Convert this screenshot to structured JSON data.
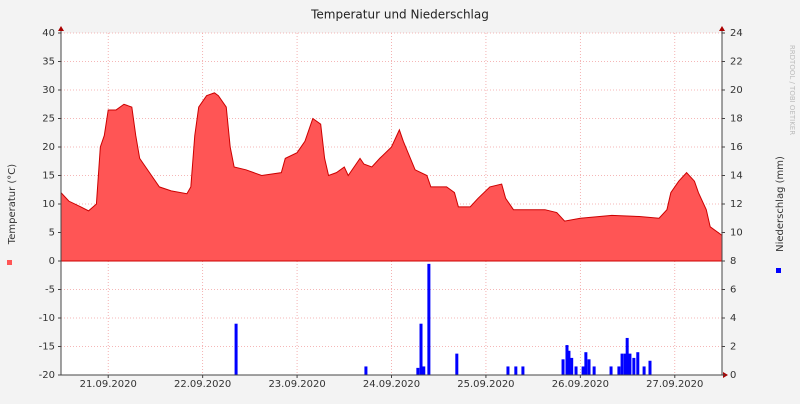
{
  "chart_data": {
    "type": "area",
    "title": "Temperatur und Niederschlag",
    "watermark": "RRDTOOL / TOBI OETIKER",
    "xlim": [
      0,
      168
    ],
    "xticks": [
      {
        "value": 12,
        "label": "21.09.2020"
      },
      {
        "value": 36,
        "label": "22.09.2020"
      },
      {
        "value": 60,
        "label": "23.09.2020"
      },
      {
        "value": 84,
        "label": "24.09.2020"
      },
      {
        "value": 108,
        "label": "25.09.2020"
      },
      {
        "value": 132,
        "label": "26.09.2020"
      },
      {
        "value": 156,
        "label": "27.09.2020"
      }
    ],
    "ylim": [
      -20,
      40
    ],
    "yticks": [
      -20,
      -15,
      -10,
      -5,
      0,
      5,
      10,
      15,
      20,
      25,
      30,
      35,
      40
    ],
    "y2lim": [
      0,
      24
    ],
    "y2ticks": [
      0,
      2,
      4,
      6,
      8,
      10,
      12,
      14,
      16,
      18,
      20,
      22,
      24
    ],
    "grid": true,
    "series": [
      {
        "name": "Temperatur (°C)",
        "type": "area",
        "color": "#ff5555",
        "line_color": "#cc0000",
        "x": [
          0,
          2,
          5,
          7,
          9,
          10,
          11,
          12,
          14,
          16,
          18,
          19,
          20,
          21,
          23,
          25,
          28,
          32,
          33,
          34,
          35,
          37,
          39,
          40,
          42,
          43,
          44,
          47,
          51,
          56,
          57,
          60,
          62,
          64,
          66,
          67,
          68,
          70,
          72,
          73,
          76,
          77,
          79,
          81,
          84,
          86,
          87,
          90,
          93,
          94,
          98,
          100,
          101,
          104,
          106,
          109,
          112,
          113,
          115,
          123,
          126,
          128,
          132,
          140,
          147,
          152,
          154,
          155,
          157,
          159,
          161,
          162,
          164,
          165,
          168
        ],
        "values": [
          12,
          10.5,
          9.5,
          8.8,
          10,
          20,
          22,
          26.5,
          26.5,
          27.5,
          27,
          22,
          18,
          17,
          15,
          13,
          12.3,
          11.8,
          13,
          22,
          27,
          29,
          29.5,
          29,
          27,
          20,
          16.5,
          16,
          15,
          15.5,
          18,
          19,
          21,
          25,
          24,
          18,
          15,
          15.5,
          16.5,
          15,
          18,
          17,
          16.5,
          18,
          20,
          23,
          21,
          16,
          15,
          13,
          13,
          12,
          9.5,
          9.5,
          11,
          13,
          13.5,
          11,
          9,
          9,
          8.5,
          7,
          7.5,
          8,
          7.8,
          7.5,
          9,
          12,
          14,
          15.5,
          14,
          12,
          9,
          6,
          4.5
        ]
      },
      {
        "name": "Niederschlag (mm)",
        "type": "bar",
        "axis": "y2",
        "color": "#0000ff",
        "x": [
          44.5,
          77.5,
          90.7,
          91.5,
          92.2,
          93.5,
          100.6,
          113.6,
          115.6,
          117.4,
          127.6,
          128.6,
          129.1,
          129.8,
          130.9,
          132.7,
          133.4,
          134.2,
          135.5,
          139.8,
          141.8,
          142.6,
          143.4,
          143.9,
          144.6,
          145.6,
          146.6,
          148.2,
          149.7
        ],
        "values": [
          3.6,
          0.6,
          0.5,
          3.6,
          0.6,
          7.8,
          1.5,
          0.6,
          0.6,
          0.6,
          1.1,
          2.1,
          1.7,
          1.2,
          0.6,
          0.6,
          1.6,
          1.1,
          0.6,
          0.6,
          0.6,
          1.5,
          1.5,
          2.6,
          1.5,
          1.2,
          1.6,
          0.6,
          1.0
        ]
      }
    ]
  }
}
